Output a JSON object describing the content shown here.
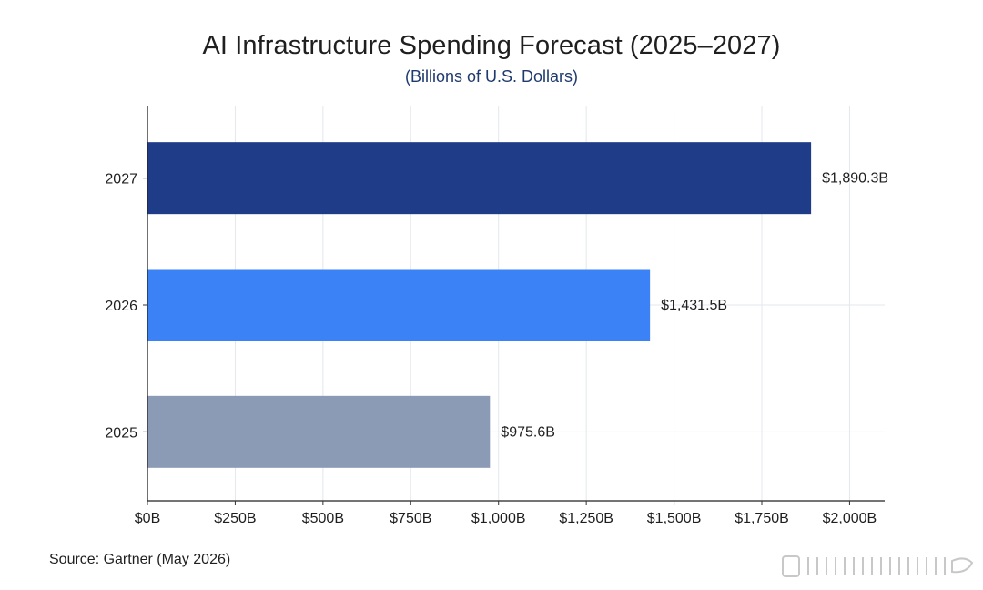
{
  "chart_data": {
    "type": "bar",
    "orientation": "horizontal",
    "title": "AI Infrastructure Spending Forecast (2025–2027)",
    "subtitle": "(Billions of U.S. Dollars)",
    "categories": [
      "2027",
      "2026",
      "2025"
    ],
    "values": [
      1890.3,
      1431.5,
      975.6
    ],
    "data_labels": [
      "$1,890.3B",
      "$1,431.5B",
      "$975.6B"
    ],
    "colors": [
      "#1f3c88",
      "#3b82f6",
      "#8c9bb5"
    ],
    "xlim": [
      0,
      2100
    ],
    "xticks": [
      0,
      250,
      500,
      750,
      1000,
      1250,
      1500,
      1750,
      2000
    ],
    "xtick_labels": [
      "$0B",
      "$250B",
      "$500B",
      "$750B",
      "$1,000B",
      "$1,250B",
      "$1,500B",
      "$1,750B",
      "$2,000B"
    ],
    "xlabel": "",
    "ylabel": "",
    "grid": true,
    "legend": "none"
  },
  "source": "Source: Gartner (May 2026)"
}
